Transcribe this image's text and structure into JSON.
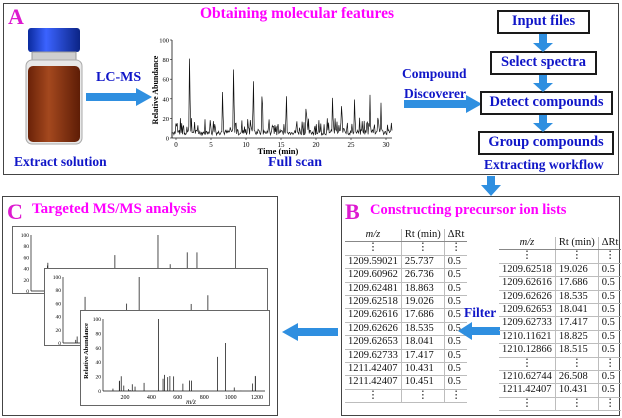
{
  "panel_a": {
    "letter": "A",
    "title": "Obtaining molecular features",
    "vial_label": "Extract solution",
    "lcms_label": "LC-MS",
    "chrom_ylabel": "Relative Abundance",
    "chrom_xlabel": "Time (min)",
    "chrom_yticks": [
      "100",
      "80",
      "60",
      "40",
      "20",
      "0"
    ],
    "chrom_xticks": [
      "0",
      "5",
      "10",
      "15",
      "20",
      "25",
      "30"
    ],
    "full_scan_label": "Full scan",
    "compound_label": "Compound",
    "discoverer_label": "Discoverer",
    "workflow": [
      "Input files",
      "Select spectra",
      "Detect compounds",
      "Group compounds"
    ],
    "workflow_label": "Extracting workflow"
  },
  "panel_b": {
    "letter": "B",
    "title": "Constructing precursor ion lists",
    "filter_label": "Filter",
    "columns": [
      "m/z",
      "Rt (min)",
      "ΔRt"
    ],
    "left_table": [
      [
        "1209.59021",
        "25.737",
        "0.5"
      ],
      [
        "1209.60962",
        "26.736",
        "0.5"
      ],
      [
        "1209.62481",
        "18.863",
        "0.5"
      ],
      [
        "1209.62518",
        "19.026",
        "0.5"
      ],
      [
        "1209.62616",
        "17.686",
        "0.5"
      ],
      [
        "1209.62626",
        "18.535",
        "0.5"
      ],
      [
        "1209.62653",
        "18.041",
        "0.5"
      ],
      [
        "1209.62733",
        "17.417",
        "0.5"
      ],
      [
        "1211.42407",
        "10.431",
        "0.5"
      ],
      [
        "1211.42407",
        "10.451",
        "0.5"
      ]
    ],
    "right_table": [
      [
        "1209.62518",
        "19.026",
        "0.5"
      ],
      [
        "1209.62616",
        "17.686",
        "0.5"
      ],
      [
        "1209.62626",
        "18.535",
        "0.5"
      ],
      [
        "1209.62653",
        "18.041",
        "0.5"
      ],
      [
        "1209.62733",
        "17.417",
        "0.5"
      ],
      [
        "1210.11621",
        "18.825",
        "0.5"
      ],
      [
        "1210.12866",
        "18.515",
        "0.5"
      ]
    ],
    "right_table_tail": [
      [
        "1210.62744",
        "26.508",
        "0.5"
      ],
      [
        "1211.42407",
        "10.431",
        "0.5"
      ]
    ],
    "ellipsis": "⋮"
  },
  "panel_c": {
    "letter": "C",
    "title": "Targeted MS/MS analysis",
    "ylabel": "Relative Abundance",
    "xlabel": "m/z",
    "yticks": [
      "100",
      "80",
      "60",
      "40",
      "20",
      "0"
    ],
    "xticks": [
      "200",
      "400",
      "600",
      "800",
      "1000",
      "1200"
    ]
  },
  "colors": {
    "accent_magenta": "#ff00ff",
    "label_blue": "#1016c8",
    "arrow_blue": "#2f8fe0",
    "vial_liquid": "#8b3414",
    "vial_cap": "#1b3fd6"
  },
  "icons": {
    "vial": "vial-icon",
    "arrow": "arrow-icon"
  }
}
